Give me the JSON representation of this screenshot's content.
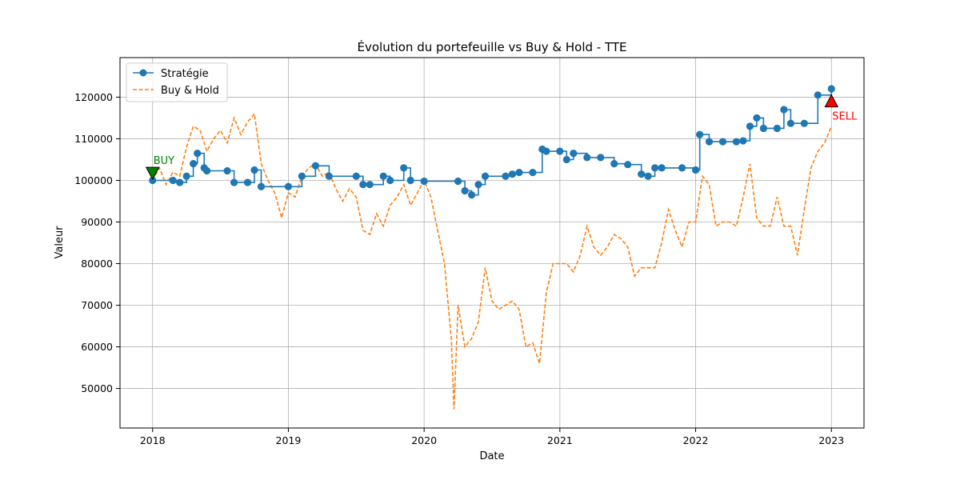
{
  "chart_data": {
    "type": "line",
    "title": "Évolution du portefeuille vs Buy & Hold - TTE",
    "xlabel": "Date",
    "ylabel": "Valeur",
    "x_ticks": [
      "2018",
      "2019",
      "2020",
      "2021",
      "2022",
      "2023"
    ],
    "y_ticks": [
      "50000",
      "60000",
      "70000",
      "80000",
      "90000",
      "100000",
      "110000",
      "120000"
    ],
    "xlim": [
      2017.76,
      2023.24
    ],
    "ylim": [
      40500,
      129500
    ],
    "grid": true,
    "legend": "upper-left",
    "colors": {
      "strategy": "#1f77b4",
      "buyhold": "#ff7f0e",
      "buy": "#008000",
      "sell": "#ff0000"
    },
    "series": [
      {
        "name": "Stratégie",
        "style": "solid-markers",
        "x": [
          2018.0,
          2018.15,
          2018.2,
          2018.25,
          2018.3,
          2018.33,
          2018.38,
          2018.4,
          2018.55,
          2018.6,
          2018.7,
          2018.75,
          2018.8,
          2019.0,
          2019.1,
          2019.2,
          2019.3,
          2019.5,
          2019.55,
          2019.6,
          2019.7,
          2019.75,
          2019.85,
          2019.9,
          2020.0,
          2020.25,
          2020.3,
          2020.35,
          2020.4,
          2020.45,
          2020.6,
          2020.65,
          2020.7,
          2020.8,
          2020.87,
          2020.9,
          2021.0,
          2021.05,
          2021.1,
          2021.2,
          2021.3,
          2021.4,
          2021.5,
          2021.6,
          2021.65,
          2021.7,
          2021.75,
          2021.9,
          2022.0,
          2022.03,
          2022.1,
          2022.2,
          2022.3,
          2022.35,
          2022.4,
          2022.45,
          2022.5,
          2022.6,
          2022.65,
          2022.7,
          2022.8,
          2022.9,
          2023.0
        ],
        "y": [
          100000,
          100000,
          99500,
          101000,
          104000,
          106500,
          103000,
          102300,
          102300,
          99500,
          99500,
          102500,
          98500,
          98500,
          101000,
          103500,
          101000,
          101000,
          99000,
          99000,
          101000,
          100000,
          103000,
          100000,
          99800,
          99800,
          97500,
          96500,
          99000,
          101000,
          101000,
          101500,
          101900,
          101900,
          107500,
          107000,
          107000,
          105000,
          106500,
          105500,
          105500,
          104000,
          103800,
          101500,
          101000,
          103000,
          103000,
          103000,
          102500,
          111000,
          109300,
          109300,
          109300,
          109500,
          113000,
          115000,
          112500,
          112500,
          117000,
          113700,
          113700,
          120500,
          122000
        ]
      },
      {
        "name": "Buy & Hold",
        "style": "dashed",
        "x": [
          2018.0,
          2018.05,
          2018.1,
          2018.15,
          2018.2,
          2018.25,
          2018.3,
          2018.35,
          2018.4,
          2018.45,
          2018.5,
          2018.55,
          2018.6,
          2018.65,
          2018.7,
          2018.75,
          2018.8,
          2018.85,
          2018.9,
          2018.95,
          2019.0,
          2019.05,
          2019.1,
          2019.15,
          2019.2,
          2019.25,
          2019.3,
          2019.35,
          2019.4,
          2019.45,
          2019.5,
          2019.55,
          2019.6,
          2019.65,
          2019.7,
          2019.75,
          2019.8,
          2019.85,
          2019.9,
          2019.95,
          2020.0,
          2020.05,
          2020.1,
          2020.15,
          2020.2,
          2020.22,
          2020.25,
          2020.3,
          2020.35,
          2020.4,
          2020.45,
          2020.5,
          2020.55,
          2020.6,
          2020.65,
          2020.7,
          2020.75,
          2020.8,
          2020.85,
          2020.9,
          2020.95,
          2021.0,
          2021.05,
          2021.1,
          2021.15,
          2021.2,
          2021.25,
          2021.3,
          2021.35,
          2021.4,
          2021.45,
          2021.5,
          2021.55,
          2021.6,
          2021.65,
          2021.7,
          2021.75,
          2021.8,
          2021.85,
          2021.9,
          2021.95,
          2022.0,
          2022.05,
          2022.1,
          2022.15,
          2022.2,
          2022.25,
          2022.3,
          2022.35,
          2022.4,
          2022.45,
          2022.5,
          2022.55,
          2022.6,
          2022.65,
          2022.7,
          2022.75,
          2022.8,
          2022.85,
          2022.9,
          2022.95,
          2023.0
        ],
        "y": [
          100000,
          103000,
          99000,
          102000,
          101000,
          108000,
          113000,
          112000,
          107000,
          110000,
          112000,
          109000,
          115000,
          111000,
          114000,
          116000,
          104000,
          100000,
          97000,
          91000,
          97000,
          96000,
          101000,
          103000,
          104000,
          101000,
          102000,
          98000,
          95000,
          98000,
          96000,
          88000,
          87000,
          92000,
          89000,
          94000,
          96000,
          99000,
          94000,
          97000,
          100000,
          96000,
          88000,
          80000,
          62000,
          45000,
          70000,
          60000,
          62000,
          66000,
          79000,
          71000,
          69000,
          70000,
          71000,
          69000,
          60000,
          61000,
          56000,
          73000,
          80000,
          80000,
          80000,
          78000,
          82000,
          89000,
          84000,
          82000,
          84000,
          87000,
          86000,
          84000,
          77000,
          79000,
          79000,
          79000,
          85000,
          93000,
          88000,
          84000,
          90000,
          90000,
          101000,
          99000,
          89000,
          90000,
          90000,
          89000,
          96000,
          104000,
          91000,
          89000,
          89000,
          96000,
          89000,
          89000,
          82000,
          93000,
          103000,
          107000,
          109000,
          113000
        ]
      }
    ],
    "annotations": [
      {
        "label": "BUY",
        "x": 2018.0,
        "y": 101800,
        "marker": "triangle-down",
        "color": "#008000"
      },
      {
        "label": "SELL",
        "x": 2023.0,
        "y": 119000,
        "marker": "triangle-up",
        "color": "#ff0000"
      }
    ]
  }
}
